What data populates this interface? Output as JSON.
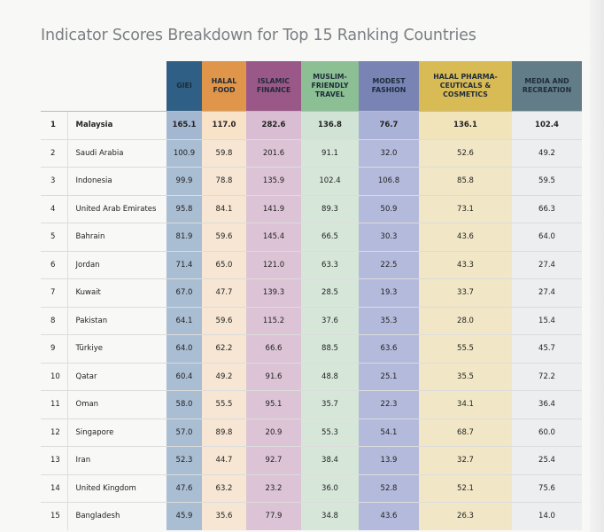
{
  "title": "Indicator Scores Breakdown for Top 15 Ranking Countries",
  "columns": [
    {
      "label": "GIEI",
      "color": "#2f5f85"
    },
    {
      "label": "HALAL\nFOOD",
      "color": "#e0964a"
    },
    {
      "label": "ISLAMIC\nFINANCE",
      "color": "#9a5888"
    },
    {
      "label": "MUSLIM-\nFRIENDLY\nTRAVEL",
      "color": "#8cbf94"
    },
    {
      "label": "MODEST\nFASHION",
      "color": "#7984b5"
    },
    {
      "label": "HALAL PHARMA-\nCEUTICALS &\nCOSMETICS",
      "color": "#d9bb55"
    },
    {
      "label": "MEDIA AND\nRECREATION",
      "color": "#627d87"
    }
  ],
  "rows": [
    {
      "rank": "1",
      "country": "Malaysia",
      "values": [
        "165.1",
        "117.0",
        "282.6",
        "136.8",
        "76.7",
        "136.1",
        "102.4"
      ]
    },
    {
      "rank": "2",
      "country": "Saudi Arabia",
      "values": [
        "100.9",
        "59.8",
        "201.6",
        "91.1",
        "32.0",
        "52.6",
        "49.2"
      ]
    },
    {
      "rank": "3",
      "country": "Indonesia",
      "values": [
        "99.9",
        "78.8",
        "135.9",
        "102.4",
        "106.8",
        "85.8",
        "59.5"
      ]
    },
    {
      "rank": "4",
      "country": "United Arab Emirates",
      "values": [
        "95.8",
        "84.1",
        "141.9",
        "89.3",
        "50.9",
        "73.1",
        "66.3"
      ]
    },
    {
      "rank": "5",
      "country": "Bahrain",
      "values": [
        "81.9",
        "59.6",
        "145.4",
        "66.5",
        "30.3",
        "43.6",
        "64.0"
      ]
    },
    {
      "rank": "6",
      "country": "Jordan",
      "values": [
        "71.4",
        "65.0",
        "121.0",
        "63.3",
        "22.5",
        "43.3",
        "27.4"
      ]
    },
    {
      "rank": "7",
      "country": "Kuwait",
      "values": [
        "67.0",
        "47.7",
        "139.3",
        "28.5",
        "19.3",
        "33.7",
        "27.4"
      ]
    },
    {
      "rank": "8",
      "country": "Pakistan",
      "values": [
        "64.1",
        "59.6",
        "115.2",
        "37.6",
        "35.3",
        "28.0",
        "15.4"
      ]
    },
    {
      "rank": "9",
      "country": "Türkiye",
      "values": [
        "64.0",
        "62.2",
        "66.6",
        "88.5",
        "63.6",
        "55.5",
        "45.7"
      ]
    },
    {
      "rank": "10",
      "country": "Qatar",
      "values": [
        "60.4",
        "49.2",
        "91.6",
        "48.8",
        "25.1",
        "35.5",
        "72.2"
      ]
    },
    {
      "rank": "11",
      "country": "Oman",
      "values": [
        "58.0",
        "55.5",
        "95.1",
        "35.7",
        "22.3",
        "34.1",
        "36.4"
      ]
    },
    {
      "rank": "12",
      "country": "Singapore",
      "values": [
        "57.0",
        "89.8",
        "20.9",
        "55.3",
        "54.1",
        "68.7",
        "60.0"
      ]
    },
    {
      "rank": "13",
      "country": "Iran",
      "values": [
        "52.3",
        "44.7",
        "92.7",
        "38.4",
        "13.9",
        "32.7",
        "25.4"
      ]
    },
    {
      "rank": "14",
      "country": "United Kingdom",
      "values": [
        "47.6",
        "63.2",
        "23.2",
        "36.0",
        "52.8",
        "52.1",
        "75.6"
      ]
    },
    {
      "rank": "15",
      "country": "Bangladesh",
      "values": [
        "45.9",
        "35.6",
        "77.9",
        "34.8",
        "43.6",
        "26.3",
        "14.0"
      ]
    }
  ]
}
